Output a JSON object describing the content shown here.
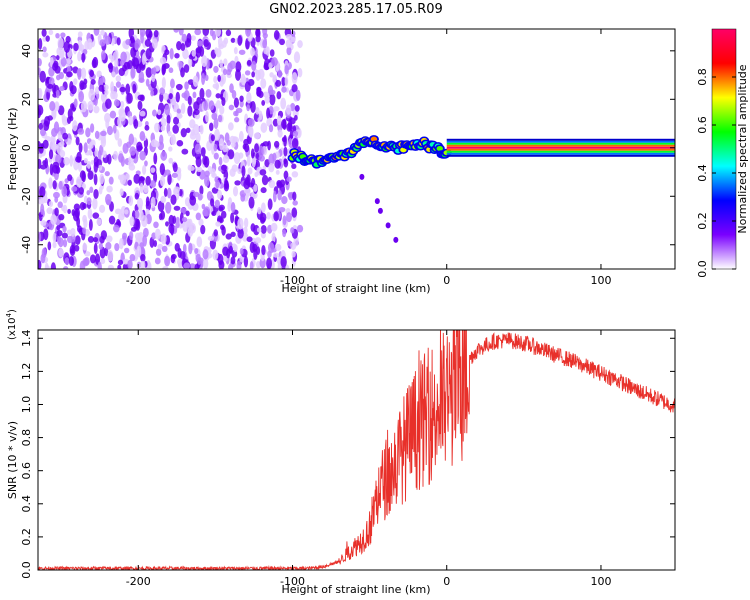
{
  "title": "GN02.2023.285.17.05.R09",
  "chart_data": [
    {
      "type": "heatmap",
      "xlabel": "Height of straight line (km)",
      "ylabel": "Frequency (Hz)",
      "xlim": [
        -265,
        148
      ],
      "ylim": [
        -50,
        49
      ],
      "x_ticks": [
        -200,
        -100,
        0,
        100
      ],
      "y_ticks": [
        -40,
        -20,
        0,
        20,
        40
      ],
      "colorbar": {
        "label": "Normalized spectral amplitude",
        "range": [
          0,
          1
        ],
        "ticks": [
          "0.0",
          "0.2",
          "0.4",
          "0.6",
          "0.8"
        ],
        "tick_values": [
          0,
          0.2,
          0.4,
          0.6,
          0.8
        ],
        "colormap": [
          "#ffffff",
          "#7a00ff",
          "#0000ff",
          "#00ffff",
          "#00ff00",
          "#ffff00",
          "#ff0000",
          "#ff0066"
        ]
      },
      "regions": [
        {
          "description": "broadband noise",
          "x_range": [
            -265,
            -95
          ],
          "y_range": [
            -50,
            49
          ],
          "amplitude": 0.1
        },
        {
          "description": "signal onset",
          "x_range": [
            -100,
            0
          ],
          "center_freq_hz": [
            -3,
            -6,
            -3,
            3,
            0,
            2,
            -2
          ],
          "amplitude": 0.5
        },
        {
          "description": "steady tone",
          "x_range": [
            0,
            148
          ],
          "center_freq_hz": 0,
          "amplitude": 1.0
        }
      ]
    },
    {
      "type": "line",
      "xlabel": "Height of straight line (km)",
      "ylabel": "SNR (10 * v/v)",
      "y_multiplier": "(x10",
      "y_multiplier_exp": "4",
      "y_multiplier_close": ")",
      "xlim": [
        -265,
        148
      ],
      "ylim": [
        0,
        1.45
      ],
      "x_ticks": [
        -200,
        -100,
        0,
        100
      ],
      "y_ticks": [
        "0.0",
        "0.2",
        "0.4",
        "0.6",
        "0.8",
        "1.0",
        "1.2",
        "1.4"
      ],
      "y_tick_values": [
        0,
        0.2,
        0.4,
        0.6,
        0.8,
        1.0,
        1.2,
        1.4
      ],
      "series": [
        {
          "color": "#e8302a",
          "x": [
            -265,
            -200,
            -150,
            -110,
            -90,
            -80,
            -70,
            -62,
            -55,
            -50,
            -45,
            -40,
            -35,
            -30,
            -25,
            -20,
            -15,
            -10,
            -5,
            0,
            5,
            10,
            15,
            20,
            30,
            40,
            50,
            60,
            70,
            80,
            90,
            100,
            110,
            120,
            130,
            140,
            148
          ],
          "values": [
            0.01,
            0.01,
            0.01,
            0.01,
            0.01,
            0.02,
            0.05,
            0.12,
            0.18,
            0.25,
            0.45,
            0.55,
            0.6,
            0.7,
            0.78,
            0.85,
            0.9,
            0.95,
            0.98,
            1.02,
            1.1,
            1.2,
            1.28,
            1.33,
            1.38,
            1.39,
            1.37,
            1.34,
            1.3,
            1.27,
            1.23,
            1.19,
            1.15,
            1.1,
            1.06,
            1.02,
            0.99
          ]
        }
      ]
    }
  ]
}
